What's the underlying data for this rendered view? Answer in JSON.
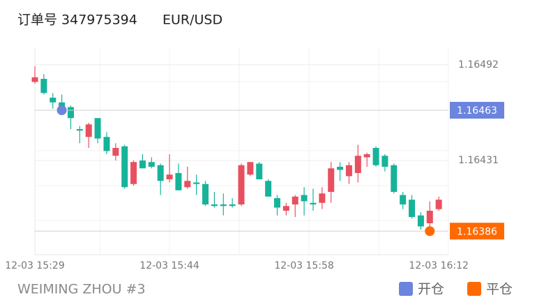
{
  "header": {
    "order": "订单号 347975394",
    "symbol": "EUR/USD"
  },
  "footer": {
    "account": "WEIMING ZHOU #3"
  },
  "chart_data": {
    "type": "candlestick",
    "categories": [
      "12-03 15:29",
      null,
      null,
      null,
      null,
      null,
      null,
      null,
      null,
      null,
      null,
      null,
      null,
      null,
      null,
      "12-03 15:44",
      null,
      null,
      null,
      null,
      null,
      null,
      null,
      null,
      null,
      null,
      null,
      null,
      null,
      null,
      "12-03 15:58",
      null,
      null,
      null,
      null,
      null,
      null,
      null,
      null,
      null,
      null,
      null,
      null,
      null,
      null,
      "12-03 16:12"
    ],
    "open": [
      1.16481,
      1.16483,
      1.16471,
      1.16468,
      1.16465,
      1.16451,
      1.16446,
      1.16458,
      1.16446,
      1.16434,
      1.1644,
      1.16416,
      1.16431,
      1.1643,
      1.16428,
      1.16419,
      1.16423,
      1.16414,
      1.16417,
      1.16416,
      1.16403,
      1.16403,
      1.16403,
      1.16403,
      1.16422,
      1.16429,
      1.16418,
      1.16407,
      1.16399,
      1.16403,
      1.16409,
      1.16404,
      1.16404,
      1.16411,
      1.16427,
      1.16421,
      1.16423,
      1.16433,
      1.16439,
      1.16434,
      1.16428,
      1.16409,
      1.16406,
      1.16396,
      1.16391,
      1.164
    ],
    "high": [
      1.16491,
      1.16486,
      1.16474,
      1.16473,
      1.16466,
      1.16453,
      1.16455,
      1.16458,
      1.16449,
      1.16442,
      1.16441,
      1.16431,
      1.16435,
      1.16433,
      1.16429,
      1.16435,
      1.16429,
      1.16427,
      1.16422,
      1.16418,
      1.16411,
      1.1641,
      1.16407,
      1.16429,
      1.1643,
      1.1643,
      1.16419,
      1.16409,
      1.16404,
      1.16409,
      1.16414,
      1.16413,
      1.16414,
      1.1643,
      1.1643,
      1.1643,
      1.16441,
      1.16436,
      1.1644,
      1.16435,
      1.16429,
      1.16411,
      1.16409,
      1.16398,
      1.16405,
      1.16408
    ],
    "low": [
      1.1648,
      1.16473,
      1.16464,
      1.1646,
      1.16451,
      1.16442,
      1.16439,
      1.16442,
      1.16435,
      1.16431,
      1.16413,
      1.16415,
      1.16426,
      1.16426,
      1.16409,
      1.16417,
      1.16412,
      1.16413,
      1.16409,
      1.16402,
      1.16401,
      1.16396,
      1.16401,
      1.16402,
      1.16421,
      1.16419,
      1.16408,
      1.16396,
      1.16396,
      1.16395,
      1.16396,
      1.16399,
      1.164,
      1.16404,
      1.16418,
      1.16416,
      1.16417,
      1.16427,
      1.16427,
      1.16424,
      1.1641,
      1.164,
      1.16394,
      1.16387,
      1.16386,
      1.16399
    ],
    "close": [
      1.16484,
      1.16474,
      1.16468,
      1.16462,
      1.16458,
      1.1645,
      1.16454,
      1.16445,
      1.16437,
      1.16439,
      1.16414,
      1.1643,
      1.16426,
      1.16427,
      1.16418,
      1.16422,
      1.16412,
      1.16418,
      1.16416,
      1.16403,
      1.16402,
      1.16402,
      1.16402,
      1.16428,
      1.1643,
      1.16419,
      1.16408,
      1.16401,
      1.16402,
      1.16408,
      1.16405,
      1.16403,
      1.1641,
      1.16426,
      1.16425,
      1.16428,
      1.16434,
      1.16435,
      1.16428,
      1.16427,
      1.16411,
      1.16403,
      1.16395,
      1.16389,
      1.16399,
      1.16406
    ],
    "up_color": "#e8505f",
    "down_color": "#16b39a",
    "series": [
      {
        "name": "开仓",
        "color": "#6b84de",
        "values": [
          null,
          null,
          null,
          1.16463,
          null,
          null,
          null,
          null,
          null,
          null,
          null,
          null,
          null,
          null,
          null,
          null,
          null,
          null,
          null,
          null,
          null,
          null,
          null,
          null,
          null,
          null,
          null,
          null,
          null,
          null,
          null,
          null,
          null,
          null,
          null,
          null,
          null,
          null,
          null,
          null,
          null,
          null,
          null,
          null,
          null,
          null
        ]
      },
      {
        "name": "平仓",
        "color": "#ff6a00",
        "values": [
          null,
          null,
          null,
          null,
          null,
          null,
          null,
          null,
          null,
          null,
          null,
          null,
          null,
          null,
          null,
          null,
          null,
          null,
          null,
          null,
          null,
          null,
          null,
          null,
          null,
          null,
          null,
          null,
          null,
          null,
          null,
          null,
          null,
          null,
          null,
          null,
          null,
          null,
          null,
          null,
          null,
          null,
          null,
          null,
          1.16386,
          null
        ]
      }
    ],
    "ylim": [
      1.16371,
      1.16503
    ],
    "yticks": [
      1.16492,
      1.16431
    ],
    "grid": true
  }
}
